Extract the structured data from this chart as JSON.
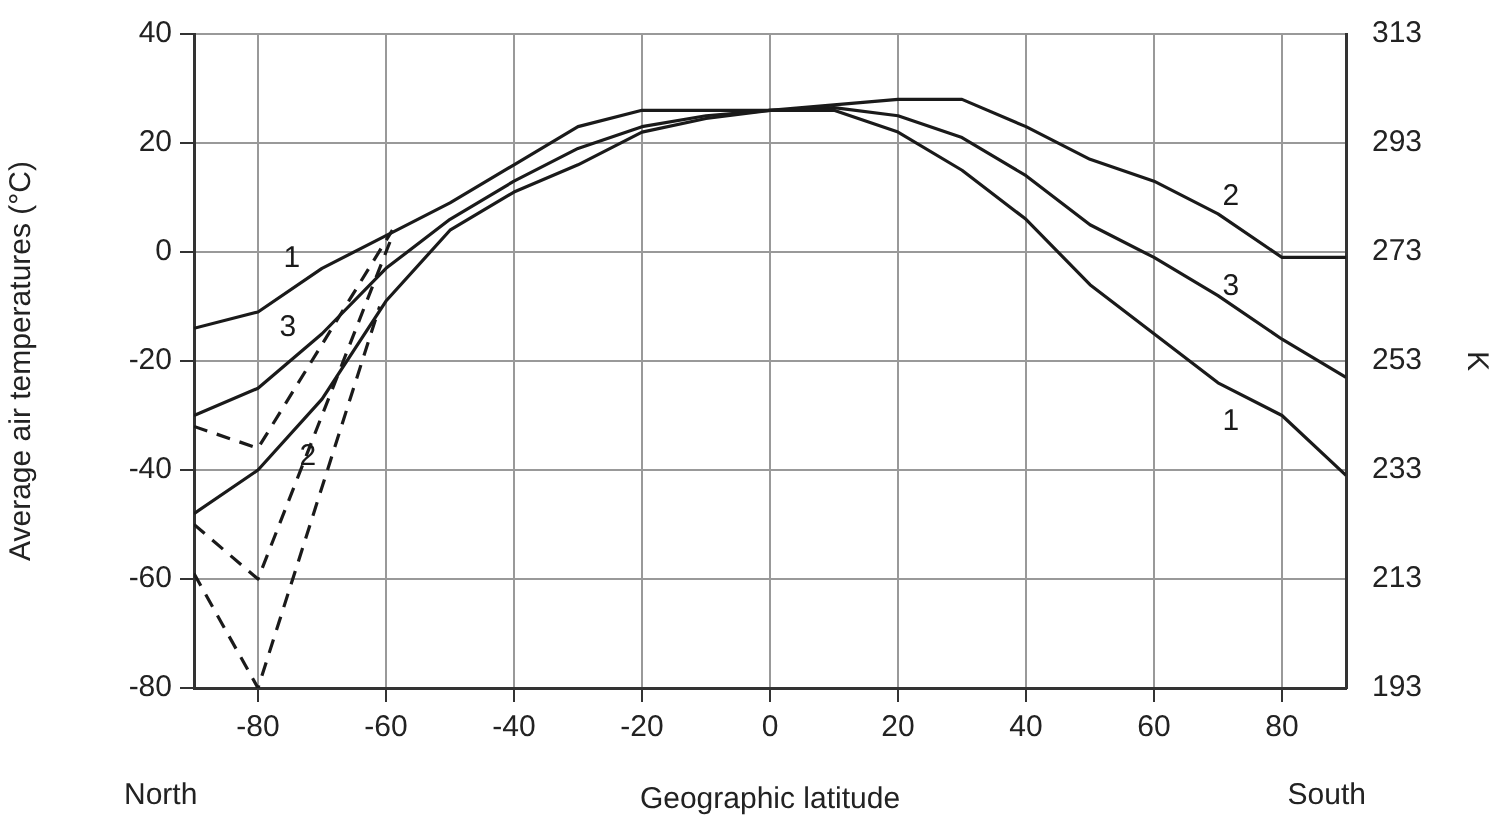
{
  "chart_data": {
    "type": "line",
    "xlabel": "Geographic latitude",
    "ylabel": "Average air temperatures (°C)",
    "y2label": "K",
    "xlim": [
      -90,
      90
    ],
    "xticks": [
      -80,
      -60,
      -40,
      -20,
      0,
      20,
      40,
      60,
      80
    ],
    "ylim": [
      -80,
      40
    ],
    "yticks": [
      -80,
      -60,
      -40,
      -20,
      0,
      20,
      40
    ],
    "y2lim": [
      193,
      313
    ],
    "y2ticks": [
      193,
      213,
      233,
      253,
      273,
      293,
      313
    ],
    "grid": true,
    "legend": false,
    "marker": "none",
    "series": [
      {
        "name": "1",
        "color": "#1a1a1a",
        "line_style": "solid",
        "x": [
          -90,
          -80,
          -70,
          -60,
          -50,
          -40,
          -30,
          -20,
          -10,
          0,
          10,
          20,
          30,
          40,
          50,
          60,
          70,
          80,
          90
        ],
        "values": [
          -14,
          -11,
          -3,
          3,
          9,
          16,
          23,
          26,
          26,
          26,
          26,
          22,
          15,
          6,
          -6,
          -15,
          -24,
          -30,
          -41
        ]
      },
      {
        "name": "2",
        "color": "#1a1a1a",
        "line_style": "solid",
        "x": [
          -90,
          -80,
          -70,
          -60,
          -50,
          -40,
          -30,
          -20,
          -10,
          0,
          10,
          20,
          30,
          40,
          50,
          60,
          70,
          80,
          90
        ],
        "values": [
          -48,
          -40,
          -27,
          -9,
          4,
          11,
          16,
          22,
          24.5,
          26,
          27,
          28,
          28,
          23,
          17,
          13,
          7,
          -1,
          -1
        ]
      },
      {
        "name": "3",
        "color": "#1a1a1a",
        "line_style": "solid",
        "x": [
          -90,
          -80,
          -70,
          -60,
          -50,
          -40,
          -30,
          -20,
          -10,
          0,
          10,
          20,
          30,
          40,
          50,
          60,
          70,
          80,
          90
        ],
        "values": [
          -30,
          -25,
          -15,
          -3,
          6,
          13,
          19,
          23,
          25,
          26,
          26.5,
          25,
          21,
          14,
          5,
          -1,
          -8,
          -16,
          -23
        ]
      },
      {
        "color": "#1a1a1a",
        "line_style": "dashed",
        "x": [
          -90,
          -80,
          -59
        ],
        "values": [
          -32,
          -36,
          4
        ]
      },
      {
        "color": "#1a1a1a",
        "line_style": "dashed",
        "x": [
          -90,
          -80,
          -59
        ],
        "values": [
          -50,
          -60,
          3
        ]
      },
      {
        "color": "#1a1a1a",
        "line_style": "dashed",
        "x": [
          -90,
          -80,
          -61
        ],
        "values": [
          -59,
          -80,
          -10
        ]
      }
    ],
    "annotations": [
      "North",
      "South"
    ]
  }
}
